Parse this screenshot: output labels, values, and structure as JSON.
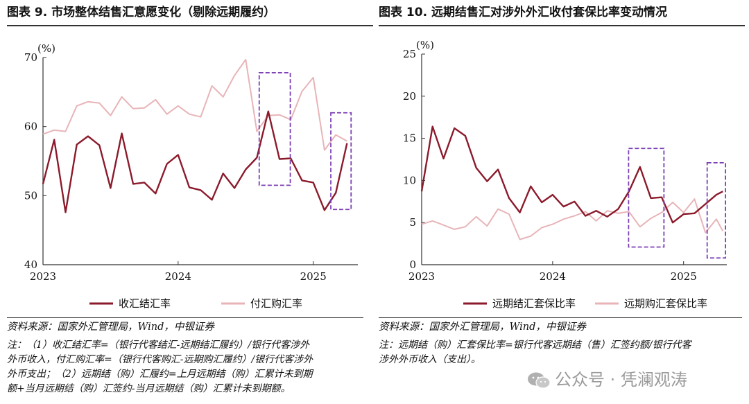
{
  "colors": {
    "dark": "#8b1a2b",
    "light": "#e8b4b8",
    "box": "#7b3fb5"
  },
  "chart_data": [
    {
      "type": "line",
      "title": "图表 9. 市场整体结售汇意愿变化（剔除远期履约）",
      "ylabel": "(%)",
      "ylim": [
        40,
        70
      ],
      "yticks": [
        40,
        50,
        60,
        70
      ],
      "x_range": [
        2023.0,
        2025.33
      ],
      "xticks": [
        {
          "value": 2023.0,
          "label": "2023"
        },
        {
          "value": 2024.0,
          "label": "2024"
        },
        {
          "value": 2025.0,
          "label": "2025"
        }
      ],
      "series": [
        {
          "name": "收汇结汇率",
          "color": "dark",
          "x": [
            2023.0,
            2023.083,
            2023.167,
            2023.25,
            2023.333,
            2023.417,
            2023.5,
            2023.583,
            2023.667,
            2023.75,
            2023.833,
            2023.917,
            2024.0,
            2024.083,
            2024.167,
            2024.25,
            2024.333,
            2024.417,
            2024.5,
            2024.583,
            2024.667,
            2024.75,
            2024.833,
            2024.917,
            2025.0,
            2025.083,
            2025.167,
            2025.25,
            2025.333
          ],
          "values": [
            51.7,
            58.1,
            47.6,
            57.4,
            58.6,
            57.3,
            51.1,
            59.0,
            51.7,
            51.9,
            50.3,
            54.6,
            55.9,
            51.2,
            50.8,
            49.4,
            53.2,
            51.1,
            53.8,
            55.5,
            62.2,
            55.3,
            55.4,
            52.2,
            51.9,
            47.9,
            50.4,
            57.6,
            null
          ]
        },
        {
          "name": "付汇购汇率",
          "color": "light",
          "x": [
            2023.0,
            2023.083,
            2023.167,
            2023.25,
            2023.333,
            2023.417,
            2023.5,
            2023.583,
            2023.667,
            2023.75,
            2023.833,
            2023.917,
            2024.0,
            2024.083,
            2024.167,
            2024.25,
            2024.333,
            2024.417,
            2024.5,
            2024.583,
            2024.667,
            2024.75,
            2024.833,
            2024.917,
            2025.0,
            2025.083,
            2025.167,
            2025.25
          ],
          "values": [
            58.9,
            59.5,
            59.3,
            63.0,
            63.6,
            63.4,
            61.6,
            64.3,
            62.6,
            62.7,
            63.9,
            61.8,
            63.0,
            61.8,
            61.4,
            65.9,
            64.3,
            67.4,
            69.7,
            59.3,
            61.6,
            61.7,
            61.0,
            65.1,
            67.1,
            56.6,
            58.8,
            57.9
          ]
        }
      ],
      "highlights": [
        {
          "x0": 2024.6,
          "x1": 2024.83,
          "y0": 51.5,
          "y1": 67.8
        },
        {
          "x0": 2025.13,
          "x1": 2025.28,
          "y0": 48.0,
          "y1": 62.0
        }
      ],
      "legend_position": "bottom"
    },
    {
      "type": "line",
      "title": "图表 10. 远期结售汇对涉外外汇收付套保比率变动情况",
      "ylabel": "(%)",
      "ylim": [
        0,
        25
      ],
      "yticks": [
        0,
        5,
        10,
        15,
        20,
        25
      ],
      "x_range": [
        2023.0,
        2025.33
      ],
      "xticks": [
        {
          "value": 2023.0,
          "label": "2023"
        },
        {
          "value": 2024.0,
          "label": "2024"
        },
        {
          "value": 2025.0,
          "label": "2025"
        }
      ],
      "series": [
        {
          "name": "远期结汇套保比率",
          "color": "dark",
          "x": [
            2023.0,
            2023.083,
            2023.167,
            2023.25,
            2023.333,
            2023.417,
            2023.5,
            2023.583,
            2023.667,
            2023.75,
            2023.833,
            2023.917,
            2024.0,
            2024.083,
            2024.167,
            2024.25,
            2024.333,
            2024.417,
            2024.5,
            2024.583,
            2024.667,
            2024.75,
            2024.833,
            2024.917,
            2025.0,
            2025.083,
            2025.167,
            2025.25,
            2025.3
          ],
          "values": [
            8.7,
            16.4,
            12.6,
            16.2,
            15.3,
            11.5,
            9.9,
            11.3,
            7.9,
            6.2,
            9.3,
            7.4,
            8.3,
            6.9,
            7.5,
            5.8,
            6.4,
            5.7,
            6.6,
            8.7,
            11.6,
            7.9,
            8.0,
            5.0,
            6.0,
            6.1,
            7.2,
            8.3,
            8.7
          ]
        },
        {
          "name": "远期购汇套保比率",
          "color": "light",
          "x": [
            2023.0,
            2023.083,
            2023.167,
            2023.25,
            2023.333,
            2023.417,
            2023.5,
            2023.583,
            2023.667,
            2023.75,
            2023.833,
            2023.917,
            2024.0,
            2024.083,
            2024.167,
            2024.25,
            2024.333,
            2024.417,
            2024.5,
            2024.583,
            2024.667,
            2024.75,
            2024.833,
            2024.917,
            2025.0,
            2025.083,
            2025.167,
            2025.25,
            2025.3
          ],
          "values": [
            4.8,
            5.2,
            4.7,
            4.2,
            4.5,
            5.7,
            4.6,
            6.6,
            6.0,
            3.0,
            3.4,
            4.4,
            4.8,
            5.4,
            5.8,
            6.3,
            5.2,
            6.4,
            6.1,
            6.3,
            4.5,
            5.5,
            6.2,
            7.4,
            6.2,
            7.8,
            3.8,
            5.4,
            4.0
          ]
        }
      ],
      "highlights": [
        {
          "x0": 2024.58,
          "x1": 2024.85,
          "y0": 2.1,
          "y1": 13.8
        },
        {
          "x0": 2025.18,
          "x1": 2025.32,
          "y0": 0.8,
          "y1": 12.1
        }
      ],
      "legend_position": "bottom"
    }
  ],
  "notes": {
    "left_source": "资料来源：国家外汇管理局，Wind，中银证券",
    "left_note_lines": [
      "注：（1）收汇结汇率=（银行代客结汇-远期结汇履约）/银行代客涉外",
      "外币收入，付汇购汇率=（银行代客购汇-远期购汇履约）/银行代客涉外",
      "外币支出；（2）远期结（购）汇履约=上月远期结（购）汇累计未到期",
      "额+当月远期结（购）汇签约-当月远期结（购）汇累计未到期额。"
    ],
    "right_source": "资料来源：国家外汇管理局，Wind，中银证券",
    "right_note_lines": [
      "注：远期结（购）汇套保比率=银行代客远期结（售）汇签约额/银行代客",
      "涉外外币收入（支出）。"
    ]
  },
  "watermark": {
    "text": "公众号 · 凭澜观涛",
    "icon": "wechat-icon"
  }
}
